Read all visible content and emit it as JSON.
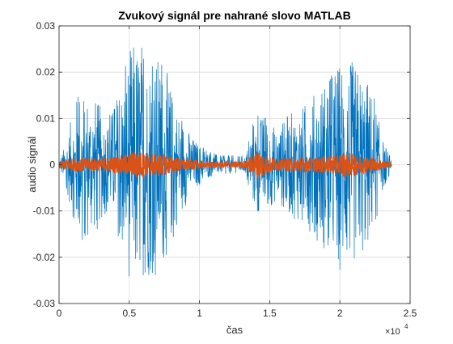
{
  "colors": {
    "background": "#ffffff",
    "axes_box": "#262626",
    "grid": "#dcdcdc",
    "series_1": "#0072BD",
    "series_2": "#D95319"
  },
  "chart_data": {
    "type": "line",
    "title": "Zvukový signál pre nahrané slovo MATLAB",
    "xlabel": "čas",
    "ylabel": "audio signál",
    "xlim": [
      0,
      25000
    ],
    "ylim": [
      -0.03,
      0.03
    ],
    "x_exponent_label": {
      "base": "×10",
      "power": "4"
    },
    "x_ticks": [
      0,
      5000,
      10000,
      15000,
      20000,
      25000
    ],
    "x_tick_labels": [
      "0",
      "0.5",
      "1",
      "1.5",
      "2",
      "2.5"
    ],
    "y_ticks": [
      0.03,
      0.02,
      0.01,
      0,
      -0.01,
      -0.02,
      -0.03
    ],
    "y_tick_labels": [
      "0.03",
      "0.02",
      "0.01",
      "0",
      "-0.01",
      "-0.02",
      "-0.03"
    ],
    "grid": true,
    "sample_count": 23700,
    "series": [
      {
        "color": "#0072BD",
        "envelope": [
          [
            0,
            0.001
          ],
          [
            400,
            0.004
          ],
          [
            1500,
            0.018
          ],
          [
            2500,
            0.015
          ],
          [
            3500,
            0.01
          ],
          [
            4500,
            0.018
          ],
          [
            5000,
            0.025
          ],
          [
            5500,
            0.028
          ],
          [
            6200,
            0.025
          ],
          [
            7000,
            0.024
          ],
          [
            7700,
            0.02
          ],
          [
            8500,
            0.012
          ],
          [
            9500,
            0.006
          ],
          [
            10500,
            0.003
          ],
          [
            11500,
            0.002
          ],
          [
            12500,
            0.002
          ],
          [
            13300,
            0.002
          ],
          [
            13800,
            0.009
          ],
          [
            14200,
            0.011
          ],
          [
            14800,
            0.01
          ],
          [
            15500,
            0.008
          ],
          [
            16300,
            0.011
          ],
          [
            17500,
            0.013
          ],
          [
            18500,
            0.017
          ],
          [
            19500,
            0.022
          ],
          [
            20300,
            0.024
          ],
          [
            21000,
            0.022
          ],
          [
            21800,
            0.02
          ],
          [
            22500,
            0.014
          ],
          [
            23000,
            0.006
          ],
          [
            23700,
            0.001
          ]
        ]
      },
      {
        "color": "#D95319",
        "envelope": [
          [
            0,
            0.0005
          ],
          [
            400,
            0.0012
          ],
          [
            1500,
            0.0015
          ],
          [
            3000,
            0.0014
          ],
          [
            4500,
            0.002
          ],
          [
            5500,
            0.003
          ],
          [
            6500,
            0.0025
          ],
          [
            7700,
            0.0022
          ],
          [
            9000,
            0.0012
          ],
          [
            10500,
            0.0007
          ],
          [
            12500,
            0.0006
          ],
          [
            13300,
            0.0008
          ],
          [
            13800,
            0.0025
          ],
          [
            14200,
            0.0032
          ],
          [
            14800,
            0.0022
          ],
          [
            15500,
            0.0012
          ],
          [
            16500,
            0.0014
          ],
          [
            18000,
            0.0016
          ],
          [
            19500,
            0.002
          ],
          [
            20300,
            0.0028
          ],
          [
            21000,
            0.0024
          ],
          [
            22000,
            0.0018
          ],
          [
            22800,
            0.0012
          ],
          [
            23700,
            0.0004
          ]
        ]
      }
    ]
  }
}
